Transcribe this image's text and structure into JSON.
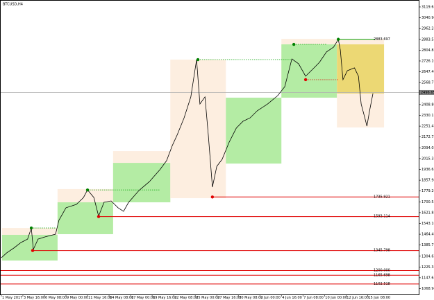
{
  "chart_data": {
    "type": "line",
    "title": "BTCUSD,H4",
    "color": "#000000",
    "xlim": [
      -4,
      1240
    ],
    "ylim": [
      1026,
      3170
    ],
    "xticks": [
      {
        "value": 0,
        "label": "1 May 2017"
      },
      {
        "value": 64,
        "label": "3 May 16:00"
      },
      {
        "value": 128,
        "label": "6 May 08:00"
      },
      {
        "value": 192,
        "label": "9 May 00:00"
      },
      {
        "value": 256,
        "label": "11 May 16:00"
      },
      {
        "value": 320,
        "label": "14 May 08:00"
      },
      {
        "value": 384,
        "label": "17 May 00:00"
      },
      {
        "value": 448,
        "label": "19 May 16:00"
      },
      {
        "value": 512,
        "label": "22 May 08:00"
      },
      {
        "value": 576,
        "label": "25 May 00:00"
      },
      {
        "value": 640,
        "label": "27 May 16:00"
      },
      {
        "value": 704,
        "label": "30 May 08:00"
      },
      {
        "value": 768,
        "label": "2 Jun 00:00"
      },
      {
        "value": 832,
        "label": "4 Jun 16:00"
      },
      {
        "value": 896,
        "label": "7 Jun 08:00"
      },
      {
        "value": 960,
        "label": "10 Jun 00:00"
      },
      {
        "value": 1024,
        "label": "12 Jun 16:00"
      },
      {
        "value": 1088,
        "label": "15 Jun 08:00"
      }
    ],
    "yticks": [
      {
        "value": 3119.635,
        "label": "3119.635"
      },
      {
        "value": 3040.94,
        "label": "3040.940"
      },
      {
        "value": 2962.245,
        "label": "2962.245"
      },
      {
        "value": 2883.551,
        "label": "2883.551"
      },
      {
        "value": 2804.856,
        "label": "2804.856"
      },
      {
        "value": 2726.161,
        "label": "2726.161"
      },
      {
        "value": 2647.466,
        "label": "2647.466"
      },
      {
        "value": 2568.771,
        "label": "2568.771"
      },
      {
        "value": 2408.805,
        "label": "2408.805"
      },
      {
        "value": 2330.11,
        "label": "2330.110"
      },
      {
        "value": 2251.415,
        "label": "2251.415"
      },
      {
        "value": 2172.72,
        "label": "2172.720"
      },
      {
        "value": 2094.025,
        "label": "2094.025"
      },
      {
        "value": 2015.33,
        "label": "2015.330"
      },
      {
        "value": 1936.636,
        "label": "1936.636"
      },
      {
        "value": 1857.941,
        "label": "1857.941"
      },
      {
        "value": 1779.246,
        "label": "1779.246"
      },
      {
        "value": 1700.551,
        "label": "1700.551"
      },
      {
        "value": 1621.856,
        "label": "1621.856"
      },
      {
        "value": 1543.161,
        "label": "1543.161"
      },
      {
        "value": 1464.466,
        "label": "1464.466"
      },
      {
        "value": 1385.772,
        "label": "1385.772"
      },
      {
        "value": 1304.629,
        "label": "1304.629"
      },
      {
        "value": 1225.335,
        "label": "1225.335"
      },
      {
        "value": 1147.638,
        "label": "1147.638"
      },
      {
        "value": 1068.943,
        "label": "1068.943"
      }
    ],
    "x": [
      0,
      16,
      37,
      58,
      78,
      89,
      95,
      109,
      130,
      161,
      171,
      192,
      223,
      244,
      256,
      275,
      289,
      305,
      326,
      347,
      363,
      378,
      409,
      440,
      471,
      491,
      508,
      522,
      543,
      563,
      580,
      590,
      605,
      615,
      627,
      640,
      656,
      677,
      698,
      718,
      739,
      760,
      791,
      821,
      842,
      863,
      883,
      904,
      925,
      945,
      966,
      987,
      1001,
      1007,
      1015,
      1028,
      1049,
      1061,
      1069,
      1080,
      1086,
      1094,
      1104
    ],
    "values": [
      1293,
      1329,
      1364,
      1404,
      1429,
      1510,
      1354,
      1429,
      1445,
      1465,
      1566,
      1657,
      1682,
      1732,
      1787,
      1732,
      1596,
      1697,
      1707,
      1657,
      1631,
      1697,
      1783,
      1848,
      1934,
      2000,
      2111,
      2186,
      2312,
      2464,
      2736,
      2413,
      2464,
      2186,
      1808,
      1959,
      2010,
      2136,
      2237,
      2287,
      2312,
      2363,
      2413,
      2474,
      2539,
      2741,
      2706,
      2615,
      2666,
      2716,
      2792,
      2827,
      2883,
      2807,
      2590,
      2655,
      2676,
      2615,
      2413,
      2312,
      2252,
      2363,
      2490
    ],
    "zones": [
      {
        "from": 2,
        "to": 167,
        "low": 1273,
        "high": 1510,
        "color": "#fdeee0"
      },
      {
        "from": 2,
        "to": 167,
        "low": 1273,
        "high": 1460,
        "color": "#b4eca4"
      },
      {
        "from": 167,
        "to": 332,
        "low": 1465,
        "high": 1793,
        "color": "#fdeee0"
      },
      {
        "from": 167,
        "to": 332,
        "low": 1465,
        "high": 1697,
        "color": "#b4eca4"
      },
      {
        "from": 332,
        "to": 502,
        "low": 1697,
        "high": 2070,
        "color": "#fdeee0"
      },
      {
        "from": 332,
        "to": 502,
        "low": 1697,
        "high": 1984,
        "color": "#b4eca4"
      },
      {
        "from": 502,
        "to": 667,
        "low": 1727,
        "high": 2736,
        "color": "#fdeee0"
      },
      {
        "from": 667,
        "to": 832,
        "low": 1979,
        "high": 2459,
        "color": "#b4eca4"
      },
      {
        "from": 832,
        "to": 997,
        "low": 2459,
        "high": 2887,
        "color": "#fdeee0"
      },
      {
        "from": 832,
        "to": 997,
        "low": 2459,
        "high": 2847,
        "color": "#b4eca4"
      },
      {
        "from": 997,
        "to": 1137,
        "low": 2242,
        "high": 2887,
        "color": "#fdeee0"
      },
      {
        "from": 997,
        "to": 1137,
        "low": 2489,
        "high": 2847,
        "color": "#ecd874"
      }
    ],
    "dotted_levels": [
      {
        "from": 89,
        "to": 161,
        "value": 1510,
        "color": "#00a000"
      },
      {
        "from": 256,
        "to": 471,
        "value": 1787,
        "color": "#00a000"
      },
      {
        "from": 584,
        "to": 863,
        "value": 2736,
        "color": "#00a000"
      },
      {
        "from": 869,
        "to": 966,
        "value": 2847,
        "color": "#00a000"
      },
      {
        "from": 904,
        "to": 1001,
        "value": 2590,
        "color": "#e00000"
      }
    ],
    "pivots": [
      {
        "x": 89,
        "value": 1510,
        "color": "#008000"
      },
      {
        "x": 256,
        "value": 1787,
        "color": "#008000"
      },
      {
        "x": 584,
        "value": 2736,
        "color": "#008000"
      },
      {
        "x": 869,
        "value": 2847,
        "color": "#008000"
      },
      {
        "x": 1001,
        "value": 2883.697,
        "color": "#008000"
      },
      {
        "x": 93,
        "value": 1345.798,
        "color": "#e00000"
      },
      {
        "x": 289,
        "value": 1593.114,
        "color": "#e00000"
      },
      {
        "x": 627,
        "value": 1735.921,
        "color": "#e00000"
      },
      {
        "x": 904,
        "value": 2590,
        "color": "#e00000"
      }
    ],
    "levels": [
      {
        "value": 2883.697,
        "from": 1001,
        "to": 1110,
        "color": "#00a000"
      },
      {
        "value": 1735.921,
        "from": 627,
        "to": 1240,
        "color": "#e00000"
      },
      {
        "value": 1593.114,
        "from": 289,
        "to": 1240,
        "color": "#e00000"
      },
      {
        "value": 1345.798,
        "from": 93,
        "to": 1240,
        "color": "#e00000"
      },
      {
        "value": 1200,
        "label": "1200.000",
        "from": -4,
        "to": 1240,
        "color": "#e00000"
      },
      {
        "value": 1165.698,
        "from": -4,
        "to": 1240,
        "color": "#e00000"
      },
      {
        "value": 1102.518,
        "from": -4,
        "to": 1240,
        "color": "#e00000"
      }
    ],
    "current_price": 2496.651
  }
}
